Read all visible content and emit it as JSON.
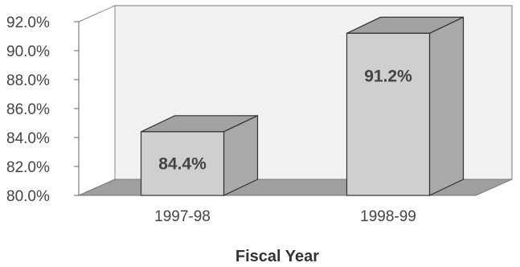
{
  "chart_data": {
    "type": "bar",
    "categories": [
      "1997-98",
      "1998-99"
    ],
    "values": [
      84.4,
      91.2
    ],
    "data_labels": [
      "84.4%",
      "91.2%"
    ],
    "xlabel": "Fiscal Year",
    "ylabel": "",
    "ylim": [
      80,
      92
    ],
    "y_ticks": [
      "80.0%",
      "82.0%",
      "84.0%",
      "86.0%",
      "88.0%",
      "90.0%",
      "92.0%"
    ],
    "three_d": true,
    "grid": false,
    "colors": {
      "bar_front": "#cfcfcf",
      "bar_side": "#a9a9a9",
      "bar_top": "#a2a2a2",
      "wall": "#f1f1f1",
      "floor": "#9f9f9f"
    }
  }
}
